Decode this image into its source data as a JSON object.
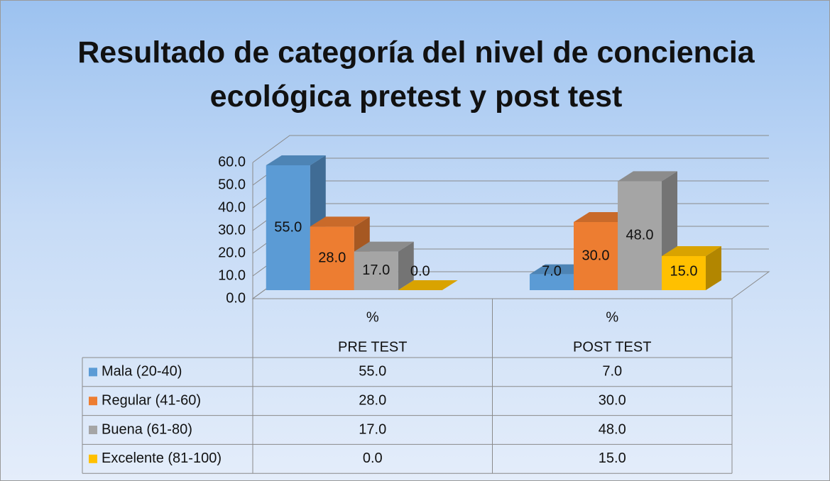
{
  "chart_data": {
    "type": "bar3d",
    "title": "Resultado de categoría del nivel de conciencia ecológica pretest y post test",
    "categories": [
      [
        "%",
        "PRE TEST"
      ],
      [
        "%",
        "POST TEST"
      ]
    ],
    "series": [
      {
        "name": "Mala (20-40)",
        "color": "#5b9bd5",
        "values": [
          55,
          7
        ],
        "value_labels": [
          "55.0",
          "7.0"
        ]
      },
      {
        "name": "Regular (41-60)",
        "color": "#ed7d31",
        "values": [
          28,
          30
        ],
        "value_labels": [
          "28.0",
          "30.0"
        ]
      },
      {
        "name": "Buena (61-80)",
        "color": "#a5a5a5",
        "values": [
          17,
          48
        ],
        "value_labels": [
          "17.0",
          "48.0"
        ]
      },
      {
        "name": "Excelente (81-100)",
        "color": "#ffc000",
        "values": [
          0,
          15
        ],
        "value_labels": [
          "0.0",
          "15.0"
        ]
      }
    ],
    "ylim": [
      0,
      60
    ],
    "yticks": [
      {
        "value": 0,
        "label": "0.0"
      },
      {
        "value": 10,
        "label": "10.0"
      },
      {
        "value": 20,
        "label": "20.0"
      },
      {
        "value": 30,
        "label": "30.0"
      },
      {
        "value": 40,
        "label": "40.0"
      },
      {
        "value": 50,
        "label": "50.0"
      },
      {
        "value": 60,
        "label": "60.0"
      }
    ],
    "grid": true,
    "data_table": true
  }
}
